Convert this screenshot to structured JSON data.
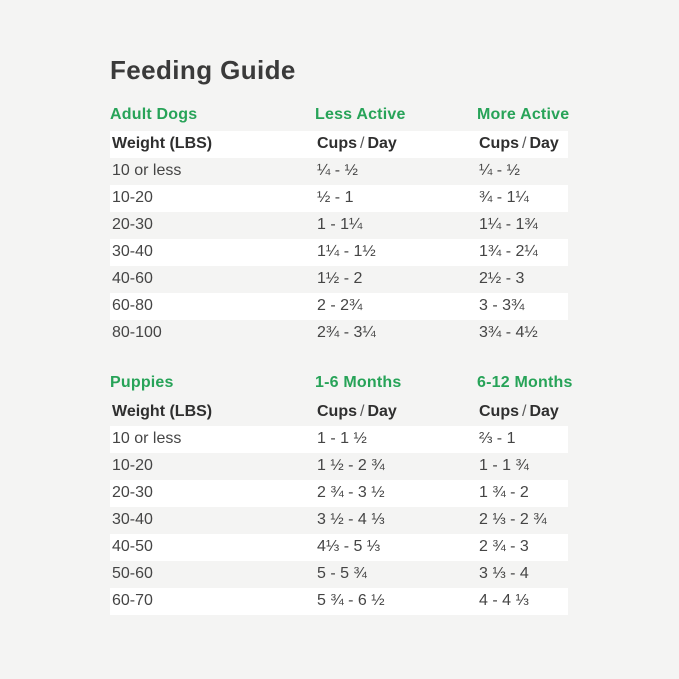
{
  "title": "Feeding Guide",
  "colors": {
    "accent_green": "#27a358",
    "page_bg": "#f4f4f3",
    "row_white": "#ffffff",
    "text_dark": "#3a3a3a"
  },
  "adult": {
    "section_label": "Adult Dogs",
    "col2_label": "Less Active",
    "col3_label": "More Active",
    "weight_header": "Weight (LBS)",
    "cups_day": {
      "cups": "Cups",
      "slash": "/",
      "day": "Day"
    },
    "rows": [
      {
        "weight": "10 or less",
        "less": "¼ - ½",
        "more": "¼ - ½"
      },
      {
        "weight": "10-20",
        "less": "½ - 1",
        "more": "¾ - 1¼"
      },
      {
        "weight": "20-30",
        "less": "1 - 1¼",
        "more": "1¼ - 1¾"
      },
      {
        "weight": "30-40",
        "less": "1¼ - 1½",
        "more": "1¾ - 2¼"
      },
      {
        "weight": "40-60",
        "less": "1½ - 2",
        "more": "2½ - 3"
      },
      {
        "weight": "60-80",
        "less": "2 - 2¾",
        "more": "3 - 3¾"
      },
      {
        "weight": "80-100",
        "less": "2¾ - 3¼",
        "more": "3¾ - 4½"
      }
    ]
  },
  "puppies": {
    "section_label": "Puppies",
    "col2_label": "1-6 Months",
    "col3_label": "6-12 Months",
    "weight_header": "Weight (LBS)",
    "cups_day": {
      "cups": "Cups",
      "slash": "/",
      "day": "Day"
    },
    "rows": [
      {
        "weight": "10 or less",
        "m1_6": "1 - 1 ½",
        "m6_12": "⅔ - 1"
      },
      {
        "weight": "10-20",
        "m1_6": "1 ½ - 2 ¾",
        "m6_12": "1 - 1 ¾"
      },
      {
        "weight": "20-30",
        "m1_6": "2 ¾ - 3 ½",
        "m6_12": "1 ¾ - 2"
      },
      {
        "weight": "30-40",
        "m1_6": "3 ½ - 4 ⅓",
        "m6_12": "2 ⅓ - 2 ¾"
      },
      {
        "weight": "40-50",
        "m1_6": "4⅓ - 5 ⅓",
        "m6_12": "2 ¾ - 3"
      },
      {
        "weight": "50-60",
        "m1_6": "5 - 5 ¾",
        "m6_12": "3 ⅓ - 4"
      },
      {
        "weight": "60-70",
        "m1_6": "5 ¾ - 6 ½",
        "m6_12": "4 - 4 ⅓"
      }
    ]
  }
}
